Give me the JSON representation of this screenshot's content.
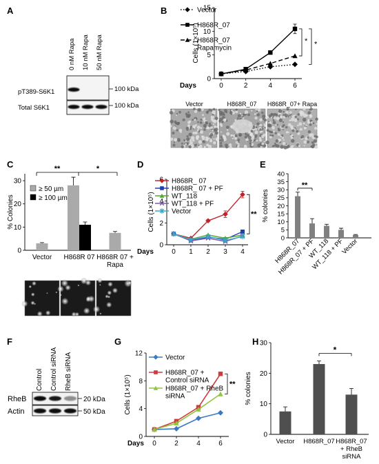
{
  "panels": {
    "A": {
      "label": "A",
      "lanes": [
        "0 nM Rapa",
        "10 nM Rapa",
        "50 nM Rapa"
      ],
      "rows": [
        "pT389-S6K1",
        "Total S6K1"
      ],
      "markers": [
        "100 kDa",
        "100 kDa"
      ],
      "band_intensity": [
        [
          1.0,
          0.05,
          0.05
        ],
        [
          1.0,
          1.0,
          1.0
        ]
      ]
    },
    "B": {
      "label": "B",
      "images": [
        "Vector",
        "H868R_07",
        "H868R_07+ Rapa"
      ]
    },
    "C": {
      "label": "C",
      "images": 3
    },
    "D": {
      "label": "D"
    },
    "E": {
      "label": "E"
    },
    "F": {
      "label": "F",
      "lanes": [
        "Control",
        "Control siRNA",
        "RheB siRNA"
      ],
      "rows": [
        "RheB",
        "Actin"
      ],
      "markers": [
        "20 kDa",
        "50 kDa"
      ],
      "band_intensity": [
        [
          1.0,
          0.95,
          0.45
        ],
        [
          1.0,
          1.0,
          1.0
        ]
      ]
    },
    "G": {
      "label": "G"
    },
    "H": {
      "label": "H"
    }
  },
  "chart_data": [
    {
      "id": "B",
      "type": "line",
      "xlabel": "Days",
      "ylabel": "Cells (1×10⁵)",
      "xticks": [
        0,
        2,
        4,
        6
      ],
      "yticks": [
        0,
        5,
        10,
        15
      ],
      "ylim": [
        0,
        15
      ],
      "series": [
        {
          "name": "Vector",
          "x": [
            0,
            2,
            4,
            6
          ],
          "y": [
            1,
            1.5,
            2.5,
            3
          ],
          "color": "#000000",
          "style": "dotted",
          "marker": "diamond"
        },
        {
          "name": "H868R_07",
          "x": [
            0,
            2,
            4,
            6
          ],
          "y": [
            1,
            2,
            5.5,
            10.5
          ],
          "err": [
            0,
            0,
            0,
            1
          ],
          "color": "#000000",
          "style": "solid",
          "marker": "square"
        },
        {
          "name": "H868R_07 Rapamycin",
          "name_lines": [
            "H868R_07",
            "Rapamycin"
          ],
          "x": [
            0,
            2,
            4,
            6
          ],
          "y": [
            1,
            1.8,
            3.2,
            4.8
          ],
          "color": "#000000",
          "style": "dashed",
          "marker": "triangle"
        }
      ],
      "significance": [
        "*",
        "*"
      ]
    },
    {
      "id": "C",
      "type": "bar",
      "ylabel": "% Colonies",
      "yticks": [
        0,
        10,
        20,
        30
      ],
      "ylim": [
        0,
        33
      ],
      "categories": [
        "Vector",
        "H868R 07",
        "H868R 07 + Rapa"
      ],
      "category_lines": [
        [
          "Vector"
        ],
        [
          "H868R 07"
        ],
        [
          "H868R 07 +",
          "Rapa"
        ]
      ],
      "series": [
        {
          "name": "≥ 50 µm",
          "values": [
            3,
            28,
            7.5
          ],
          "err": [
            0.3,
            3.5,
            0.6
          ],
          "color": "#aaaaaa"
        },
        {
          "name": "≥ 100 µm",
          "values": [
            null,
            11,
            null
          ],
          "err": [
            0,
            1.2,
            0
          ],
          "color": "#000000"
        }
      ],
      "legend": "top-left",
      "significance": [
        "**",
        "*"
      ]
    },
    {
      "id": "D",
      "type": "line",
      "xlabel": "Days",
      "ylabel": "Cells (1×10⁵)",
      "xticks": [
        0,
        1,
        2,
        3,
        4
      ],
      "yticks": [
        0,
        2,
        4,
        6
      ],
      "ylim": [
        0,
        6
      ],
      "series": [
        {
          "name": "H868R_ 07",
          "x": [
            0,
            1,
            2,
            3,
            4
          ],
          "y": [
            1,
            0.6,
            2.2,
            2.8,
            4.6
          ],
          "err": [
            0,
            0,
            0.1,
            0.3,
            0.3
          ],
          "color": "#c0242b",
          "marker": "diamond"
        },
        {
          "name": "H868R_ 07 + PF",
          "x": [
            0,
            1,
            2,
            3,
            4
          ],
          "y": [
            1,
            0.4,
            0.7,
            0.5,
            1.2
          ],
          "color": "#1d3fb5",
          "marker": "square"
        },
        {
          "name": "WT_118",
          "x": [
            0,
            1,
            2,
            3,
            4
          ],
          "y": [
            1,
            0.5,
            0.9,
            0.6,
            0.9
          ],
          "color": "#55a634",
          "marker": "triangle"
        },
        {
          "name": "WT_118 + PF",
          "x": [
            0,
            1,
            2,
            3,
            4
          ],
          "y": [
            1,
            0.35,
            0.6,
            0.3,
            0.8
          ],
          "color": "#7b5ba8",
          "marker": "x"
        },
        {
          "name": "Vector",
          "x": [
            0,
            1,
            2,
            3,
            4
          ],
          "y": [
            1,
            0.45,
            0.75,
            0.4,
            0.75
          ],
          "color": "#3aa6c8",
          "marker": "star"
        }
      ],
      "significance": [
        "**"
      ]
    },
    {
      "id": "E",
      "type": "bar",
      "ylabel": "% colonies",
      "yticks": [
        0,
        5,
        10,
        15,
        20,
        25,
        30,
        35,
        40
      ],
      "ylim": [
        0,
        40
      ],
      "categories": [
        "H868R_07",
        "H868R_07 + PF",
        "WT_118",
        "WT_118 + PF",
        "Vector"
      ],
      "values": [
        26,
        9,
        7.5,
        5,
        1.8
      ],
      "err": [
        2.5,
        3,
        1,
        1,
        0.3
      ],
      "color": "#808080",
      "significance": [
        "**"
      ]
    },
    {
      "id": "G",
      "type": "line",
      "xlabel": "Days",
      "ylabel": "Cells (1×10⁵)",
      "xticks": [
        0,
        2,
        4,
        6
      ],
      "yticks": [
        0,
        4,
        8,
        12
      ],
      "ylim": [
        0,
        12
      ],
      "series": [
        {
          "name": "Vector",
          "x": [
            0,
            2,
            4,
            6
          ],
          "y": [
            1,
            1.1,
            2.6,
            3.4
          ],
          "color": "#3b78c4",
          "marker": "diamond"
        },
        {
          "name": "H868R_07 + Control siRNA",
          "name_lines": [
            "H868R_07 +",
            "Control siRNA"
          ],
          "x": [
            0,
            2,
            4,
            6
          ],
          "y": [
            1,
            2.2,
            4.2,
            9
          ],
          "color": "#d03a3a",
          "marker": "square"
        },
        {
          "name": "H868R_07 + RheB siRNA",
          "name_lines": [
            "H868R_07 + RheB",
            "siRNA"
          ],
          "x": [
            0,
            2,
            4,
            6
          ],
          "y": [
            1,
            1.9,
            3.9,
            6.1
          ],
          "color": "#8ec63f",
          "marker": "triangle"
        }
      ],
      "significance": [
        "**"
      ]
    },
    {
      "id": "H",
      "type": "bar",
      "ylabel": "% colonies",
      "yticks": [
        0,
        10,
        20,
        30
      ],
      "ylim": [
        0,
        30
      ],
      "categories": [
        "Vector",
        "H868R_07",
        "H868R_07 + RheB siRNA"
      ],
      "category_lines": [
        [
          "Vector"
        ],
        [
          "H868R_07"
        ],
        [
          "H868R_07",
          "+ RheB",
          "siRNA"
        ]
      ],
      "values": [
        7.5,
        23,
        13
      ],
      "err": [
        1.5,
        1,
        2
      ],
      "color": "#4f4f4f",
      "significance": [
        "*"
      ]
    }
  ]
}
